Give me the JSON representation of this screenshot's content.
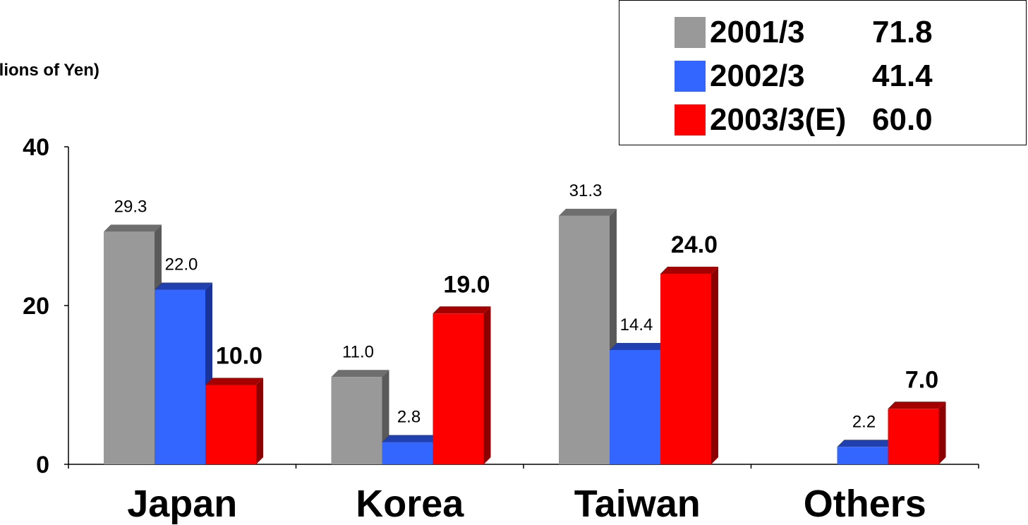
{
  "chart_data": {
    "type": "bar",
    "ylabel": "(Billions of Yen)",
    "categories": [
      "Japan",
      "Korea",
      "Taiwan",
      "Others"
    ],
    "ylim": [
      0,
      40
    ],
    "yticks": [
      0,
      20,
      40
    ],
    "grid": false,
    "legend_position": "top-right",
    "series": [
      {
        "name": "2001/3",
        "total": "71.8",
        "color": "#999999",
        "side_color": "#5a5a5a",
        "top_color": "#6e6e6e",
        "values": [
          29.3,
          11.0,
          31.3,
          null
        ],
        "labels": [
          "29.3",
          "11.0",
          "31.3",
          ""
        ],
        "label_bold": false
      },
      {
        "name": "2002/3",
        "total": "41.4",
        "color": "#3366ff",
        "side_color": "#1a3399",
        "top_color": "#2040b0",
        "values": [
          22.0,
          2.8,
          14.4,
          2.2
        ],
        "labels": [
          "22.0",
          "2.8",
          "14.4",
          "2.2"
        ],
        "label_bold": false
      },
      {
        "name": "2003/3(E)",
        "total": "60.0",
        "color": "#ff0000",
        "side_color": "#8b0000",
        "top_color": "#a50000",
        "values": [
          10.0,
          19.0,
          24.0,
          7.0
        ],
        "labels": [
          "10.0",
          "19.0",
          "24.0",
          "7.0"
        ],
        "label_bold": true
      }
    ]
  }
}
